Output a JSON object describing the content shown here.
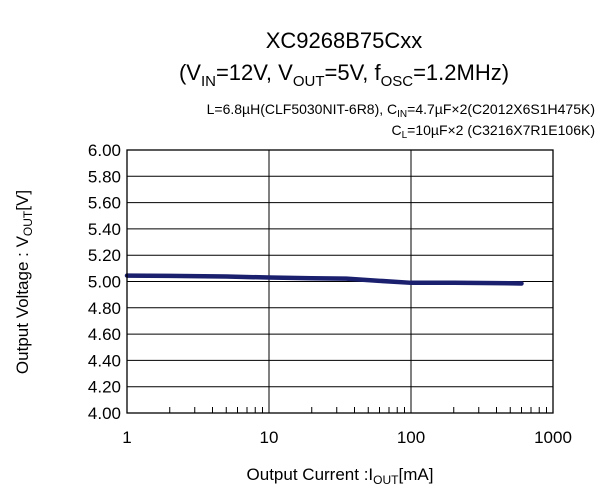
{
  "chart_data": {
    "type": "line",
    "title_main": "XC9268B75Cxx",
    "title_sub": {
      "open": "(V",
      "vin_sub": "IN",
      "vin_val": "=12V, V",
      "vout_sub": "OUT",
      "vout_val": "=5V, f",
      "fosc_sub": "OSC",
      "fosc_val": "=1.2MHz)"
    },
    "conditions": {
      "line1_a": "L=6.8µH(CLF5030NIT-6R8),  C",
      "line1_sub": "IN",
      "line1_b": "=4.7µF×2(C2012X6S1H475K)",
      "line2_a": "C",
      "line2_sub": "L",
      "line2_b": "=10µF×2  (C3216X7R1E106K)"
    },
    "xlabel": {
      "a": "Output Current :I",
      "sub": "OUT",
      "b": "[mA]"
    },
    "ylabel": {
      "a": "Output Voltage : V",
      "sub": "OUT",
      "b": "[V]"
    },
    "x_scale": "log",
    "xlim": [
      1,
      1000
    ],
    "ylim": [
      4.0,
      6.0
    ],
    "x_ticks": [
      1,
      10,
      100,
      1000
    ],
    "x_tick_labels": [
      "1",
      "10",
      "100",
      "1000"
    ],
    "y_ticks": [
      4.0,
      4.2,
      4.4,
      4.6,
      4.8,
      5.0,
      5.2,
      5.4,
      5.6,
      5.8,
      6.0
    ],
    "y_tick_labels": [
      "4.00",
      "4.20",
      "4.40",
      "4.60",
      "4.80",
      "5.00",
      "5.20",
      "5.40",
      "5.60",
      "5.80",
      "6.00"
    ],
    "grid": "major x (decades) and major y",
    "series": [
      {
        "color": "#1a1f6e",
        "x": [
          1,
          2,
          5,
          10,
          20,
          35,
          60,
          100,
          200,
          400,
          600
        ],
        "y": [
          5.045,
          5.043,
          5.038,
          5.03,
          5.025,
          5.022,
          5.005,
          4.99,
          4.99,
          4.988,
          4.985
        ]
      }
    ]
  }
}
